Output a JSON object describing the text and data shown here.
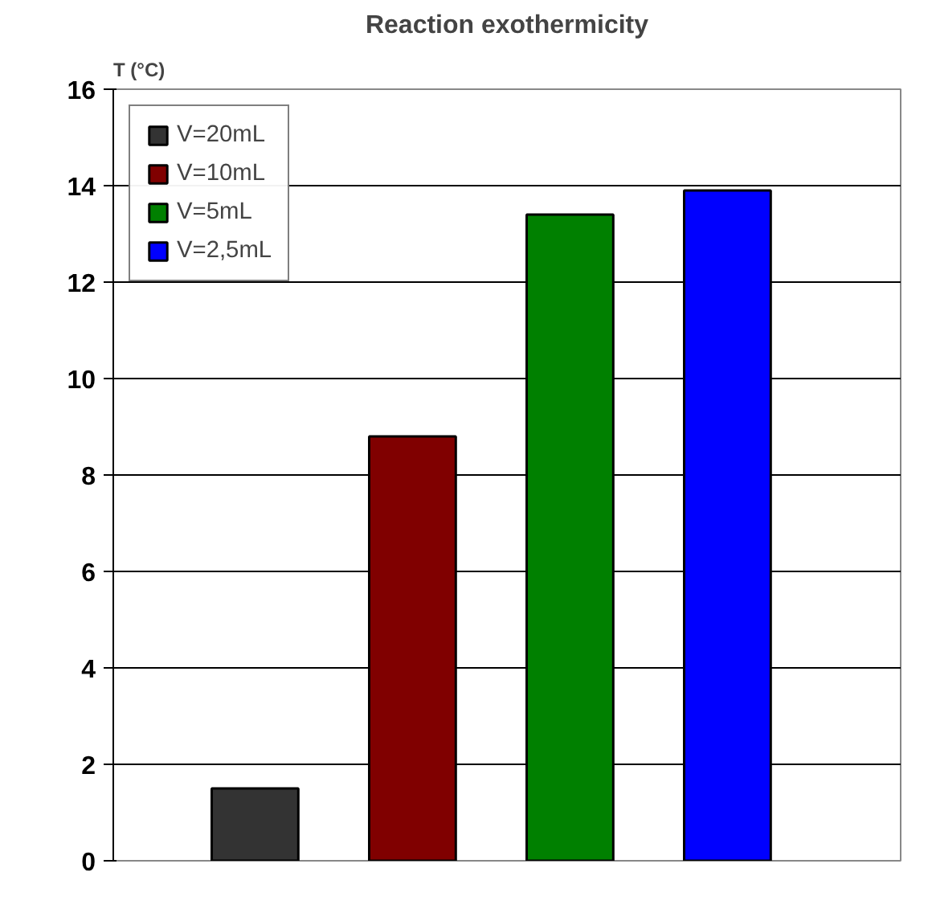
{
  "chart_data": {
    "type": "bar",
    "title": "Reaction exothermicity",
    "ylabel": "T (°C)",
    "categories": [
      null
    ],
    "series": [
      {
        "name": "V=20mL",
        "color": "#333333",
        "values": [
          1.5
        ]
      },
      {
        "name": "V=10mL",
        "color": "#800000",
        "values": [
          8.8
        ]
      },
      {
        "name": "V=5mL",
        "color": "#008000",
        "values": [
          13.4
        ]
      },
      {
        "name": "V=2,5mL",
        "color": "#0000ff",
        "values": [
          13.9
        ]
      }
    ],
    "ylim": [
      0,
      16
    ],
    "yticks": [
      0,
      2,
      4,
      6,
      8,
      10,
      12,
      14,
      16
    ],
    "grid": "y",
    "legend": "top left",
    "tick_labels": "y"
  }
}
